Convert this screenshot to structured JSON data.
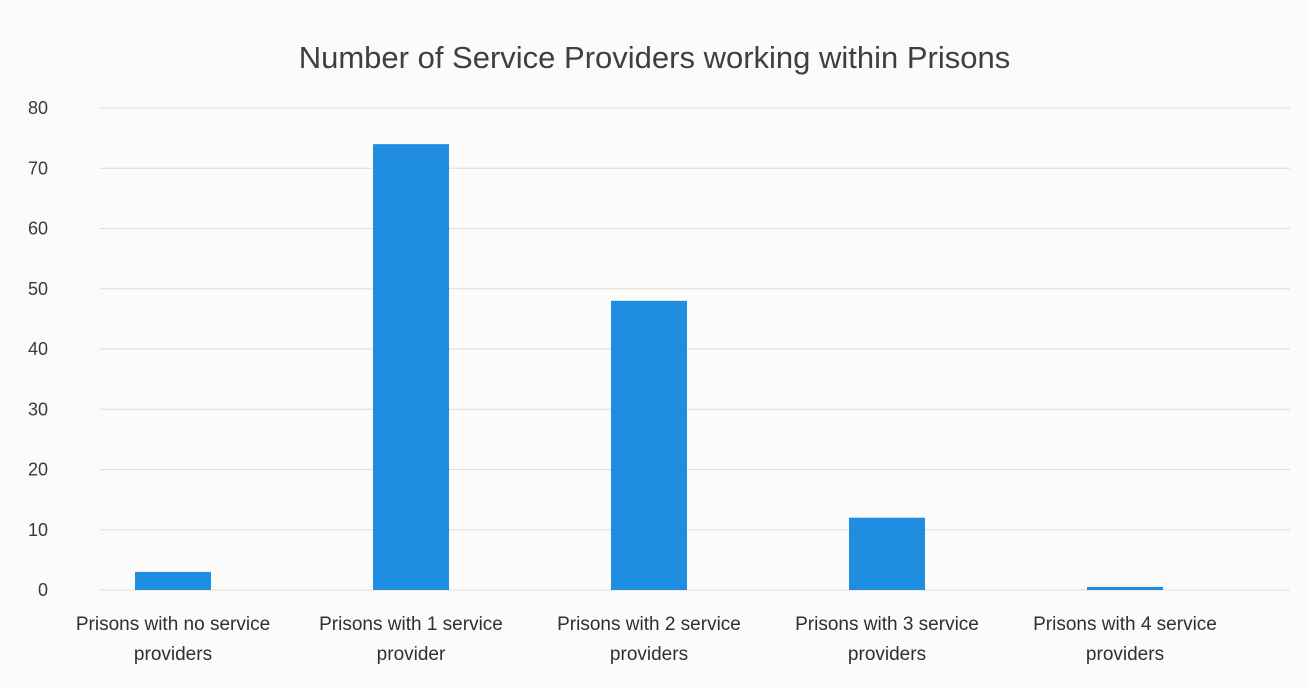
{
  "chart_data": {
    "type": "bar",
    "title": "Number of Service Providers working within Prisons",
    "categories": [
      [
        "Prisons with no service",
        "providers"
      ],
      [
        "Prisons with 1 service",
        "provider"
      ],
      [
        "Prisons with 2 service",
        "providers"
      ],
      [
        "Prisons with 3 service",
        "providers"
      ],
      [
        "Prisons with 4 service",
        "providers"
      ]
    ],
    "values": [
      3,
      74,
      48,
      12,
      0.5
    ],
    "ylim": [
      0,
      80
    ],
    "yticks": [
      0,
      10,
      20,
      30,
      40,
      50,
      60,
      70,
      80
    ],
    "grid": true,
    "legend": "none",
    "bar_color": "#1f8ee0",
    "grid_color": "#dcdcdc"
  }
}
